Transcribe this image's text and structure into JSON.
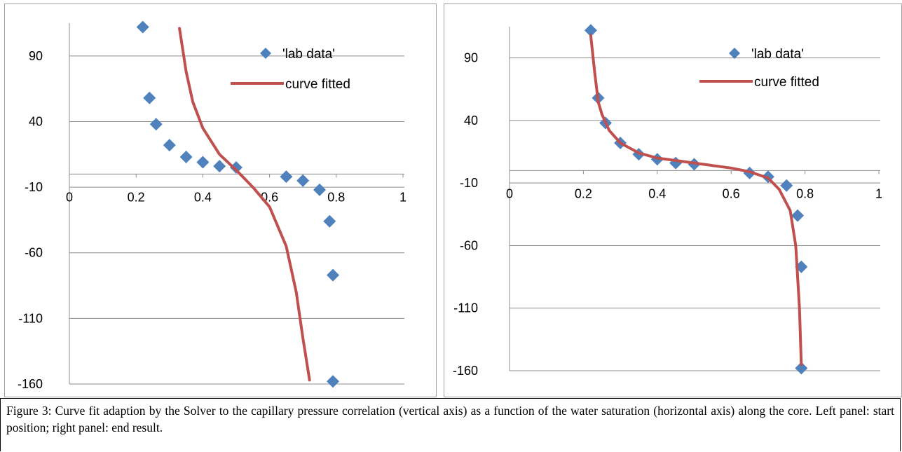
{
  "caption": "Figure 3: Curve fit adaption by the Solver to the capillary pressure correlation (vertical axis) as a function of the water saturation (horizontal axis) along the core. Left panel: start position; right panel: end result.",
  "chart_data": [
    {
      "type": "scatter",
      "panel": "start position",
      "xlim": [
        0,
        1
      ],
      "ylim": [
        -160,
        115
      ],
      "x_ticks": [
        "0",
        "0.2",
        "0.4",
        "0.6",
        "0.8",
        "1"
      ],
      "y_ticks": [
        "90",
        "40",
        "-10",
        "-60",
        "-110",
        "-160"
      ],
      "grid": "horizontal",
      "legend_position": "top-right",
      "series": [
        {
          "name": "'lab data'",
          "type": "scatter",
          "color": "#4f81bd",
          "marker": "diamond",
          "x": [
            0.22,
            0.24,
            0.26,
            0.3,
            0.35,
            0.4,
            0.45,
            0.5,
            0.65,
            0.7,
            0.75,
            0.78,
            0.79,
            0.79
          ],
          "y": [
            112,
            58,
            38,
            22,
            13,
            9,
            6,
            5,
            -2,
            -5,
            -12,
            -36,
            -77,
            -158
          ]
        },
        {
          "name": "curve fitted",
          "type": "line",
          "color": "#c0504d",
          "x": [
            0.33,
            0.35,
            0.37,
            0.4,
            0.45,
            0.5,
            0.55,
            0.6,
            0.65,
            0.68,
            0.7,
            0.72
          ],
          "y": [
            111,
            78,
            55,
            35,
            15,
            3,
            -10,
            -25,
            -55,
            -90,
            -125,
            -157
          ]
        }
      ]
    },
    {
      "type": "scatter",
      "panel": "end result",
      "xlim": [
        0,
        1
      ],
      "ylim": [
        -160,
        115
      ],
      "x_ticks": [
        "0",
        "0.2",
        "0.4",
        "0.6",
        "0.8",
        "1"
      ],
      "y_ticks": [
        "90",
        "40",
        "-10",
        "-60",
        "-110",
        "-160"
      ],
      "grid": "horizontal",
      "legend_position": "top-right",
      "series": [
        {
          "name": "'lab data'",
          "type": "scatter",
          "color": "#4f81bd",
          "marker": "diamond",
          "x": [
            0.22,
            0.24,
            0.26,
            0.3,
            0.35,
            0.4,
            0.45,
            0.5,
            0.65,
            0.7,
            0.75,
            0.78,
            0.79,
            0.79
          ],
          "y": [
            112,
            58,
            38,
            22,
            13,
            9,
            6,
            5,
            -2,
            -5,
            -12,
            -36,
            -77,
            -158
          ]
        },
        {
          "name": "curve fitted",
          "type": "line",
          "color": "#c0504d",
          "x": [
            0.22,
            0.23,
            0.24,
            0.25,
            0.27,
            0.3,
            0.35,
            0.4,
            0.5,
            0.6,
            0.65,
            0.7,
            0.73,
            0.76,
            0.775,
            0.785,
            0.79
          ],
          "y": [
            108,
            80,
            55,
            45,
            32,
            22,
            14,
            10,
            6,
            2,
            -1,
            -6,
            -15,
            -32,
            -60,
            -110,
            -155
          ]
        }
      ]
    }
  ]
}
